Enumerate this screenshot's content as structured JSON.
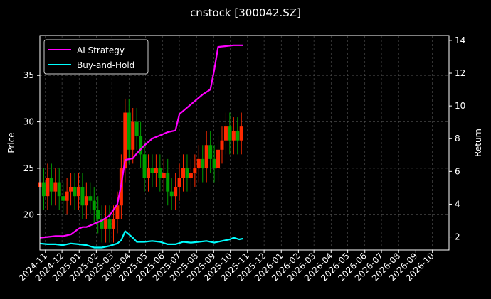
{
  "chart_data": {
    "type": "line",
    "title": "cnstock [300042.SZ]",
    "xlabel": "",
    "ylabel_left": "Price",
    "ylabel_right": "Return",
    "background": "#000000",
    "grid": true,
    "legend_position": "top-left",
    "x_ticks": [
      "2024-11",
      "2024-12",
      "2025-01",
      "2025-02",
      "2025-03",
      "2025-04",
      "2025-05",
      "2025-06",
      "2025-07",
      "2025-08",
      "2025-09",
      "2025-10",
      "2025-11",
      "2025-12",
      "2026-01",
      "2026-02",
      "2026-03",
      "2026-04",
      "2026-05",
      "2026-06",
      "2026-07",
      "2026-08",
      "2026-09",
      "2026-10"
    ],
    "x_range": [
      "2024-10-22",
      "2026-10-31"
    ],
    "y_left_ticks": [
      20,
      25,
      30,
      35
    ],
    "y_left_range": [
      16.2,
      39.3
    ],
    "y_right_ticks": [
      2,
      4,
      6,
      8,
      10,
      12,
      14
    ],
    "y_right_range": [
      1.2,
      14.3
    ],
    "candle_colors": {
      "up": "#ff2a00",
      "down": "#00a000"
    },
    "price_close": [
      [
        "2024-10-22",
        23.5
      ],
      [
        "2024-10-29",
        22.0
      ],
      [
        "2024-11-05",
        24.0
      ],
      [
        "2024-11-12",
        22.5
      ],
      [
        "2024-11-19",
        23.5
      ],
      [
        "2024-11-26",
        22.0
      ],
      [
        "2024-12-03",
        21.5
      ],
      [
        "2024-12-10",
        22.5
      ],
      [
        "2024-12-17",
        23.0
      ],
      [
        "2024-12-24",
        22.0
      ],
      [
        "2024-12-31",
        23.0
      ],
      [
        "2025-01-07",
        21.0
      ],
      [
        "2025-01-14",
        22.0
      ],
      [
        "2025-01-21",
        21.5
      ],
      [
        "2025-01-28",
        20.5
      ],
      [
        "2025-02-04",
        19.5
      ],
      [
        "2025-02-11",
        18.5
      ],
      [
        "2025-02-18",
        19.5
      ],
      [
        "2025-02-25",
        18.5
      ],
      [
        "2025-03-04",
        19.5
      ],
      [
        "2025-03-11",
        21.0
      ],
      [
        "2025-03-18",
        25.0
      ],
      [
        "2025-03-25",
        31.0
      ],
      [
        "2025-04-01",
        27.0
      ],
      [
        "2025-04-08",
        30.0
      ],
      [
        "2025-04-15",
        28.5
      ],
      [
        "2025-04-22",
        26.5
      ],
      [
        "2025-04-29",
        24.0
      ],
      [
        "2025-05-06",
        25.0
      ],
      [
        "2025-05-13",
        24.5
      ],
      [
        "2025-05-20",
        25.0
      ],
      [
        "2025-05-27",
        24.0
      ],
      [
        "2025-06-03",
        24.5
      ],
      [
        "2025-06-10",
        22.5
      ],
      [
        "2025-06-17",
        22.0
      ],
      [
        "2025-06-24",
        23.0
      ],
      [
        "2025-07-01",
        24.0
      ],
      [
        "2025-07-08",
        25.0
      ],
      [
        "2025-07-15",
        24.0
      ],
      [
        "2025-07-22",
        24.5
      ],
      [
        "2025-07-29",
        25.0
      ],
      [
        "2025-08-05",
        26.0
      ],
      [
        "2025-08-12",
        25.0
      ],
      [
        "2025-08-19",
        27.5
      ],
      [
        "2025-08-26",
        26.0
      ],
      [
        "2025-09-02",
        25.0
      ],
      [
        "2025-09-09",
        27.0
      ],
      [
        "2025-09-16",
        28.0
      ],
      [
        "2025-09-23",
        29.5
      ],
      [
        "2025-09-30",
        28.0
      ],
      [
        "2025-10-07",
        29.0
      ],
      [
        "2025-10-14",
        28.0
      ],
      [
        "2025-10-21",
        29.5
      ]
    ],
    "series": [
      {
        "name": "AI Strategy",
        "axis": "right",
        "color": "#ff00ff",
        "points": [
          [
            "2024-10-22",
            1.95
          ],
          [
            "2024-11-05",
            2.0
          ],
          [
            "2024-11-19",
            2.05
          ],
          [
            "2024-12-03",
            2.05
          ],
          [
            "2024-12-17",
            2.15
          ],
          [
            "2024-12-31",
            2.5
          ],
          [
            "2025-01-07",
            2.6
          ],
          [
            "2025-01-14",
            2.6
          ],
          [
            "2025-01-28",
            2.8
          ],
          [
            "2025-02-11",
            3.0
          ],
          [
            "2025-02-25",
            3.3
          ],
          [
            "2025-03-11",
            4.0
          ],
          [
            "2025-03-18",
            5.2
          ],
          [
            "2025-03-25",
            6.7
          ],
          [
            "2025-04-08",
            6.8
          ],
          [
            "2025-04-15",
            7.1
          ],
          [
            "2025-04-29",
            7.6
          ],
          [
            "2025-05-13",
            8.0
          ],
          [
            "2025-05-27",
            8.2
          ],
          [
            "2025-06-10",
            8.4
          ],
          [
            "2025-06-24",
            8.5
          ],
          [
            "2025-07-01",
            9.5
          ],
          [
            "2025-07-15",
            9.9
          ],
          [
            "2025-07-29",
            10.3
          ],
          [
            "2025-08-12",
            10.7
          ],
          [
            "2025-08-26",
            11.0
          ],
          [
            "2025-09-02",
            12.2
          ],
          [
            "2025-09-09",
            13.6
          ],
          [
            "2025-09-23",
            13.65
          ],
          [
            "2025-10-07",
            13.7
          ],
          [
            "2025-10-24",
            13.7
          ]
        ]
      },
      {
        "name": "Buy-and-Hold",
        "axis": "right",
        "color": "#00ffff",
        "points": [
          [
            "2024-10-22",
            1.6
          ],
          [
            "2024-11-05",
            1.55
          ],
          [
            "2024-11-19",
            1.55
          ],
          [
            "2024-12-03",
            1.5
          ],
          [
            "2024-12-17",
            1.6
          ],
          [
            "2024-12-31",
            1.55
          ],
          [
            "2025-01-14",
            1.5
          ],
          [
            "2025-01-28",
            1.35
          ],
          [
            "2025-02-11",
            1.35
          ],
          [
            "2025-02-25",
            1.45
          ],
          [
            "2025-03-11",
            1.6
          ],
          [
            "2025-03-18",
            1.8
          ],
          [
            "2025-03-25",
            2.35
          ],
          [
            "2025-04-08",
            1.95
          ],
          [
            "2025-04-15",
            1.7
          ],
          [
            "2025-04-29",
            1.7
          ],
          [
            "2025-05-13",
            1.75
          ],
          [
            "2025-05-27",
            1.7
          ],
          [
            "2025-06-10",
            1.55
          ],
          [
            "2025-06-24",
            1.55
          ],
          [
            "2025-07-08",
            1.7
          ],
          [
            "2025-07-22",
            1.65
          ],
          [
            "2025-08-05",
            1.7
          ],
          [
            "2025-08-19",
            1.75
          ],
          [
            "2025-09-02",
            1.65
          ],
          [
            "2025-09-16",
            1.75
          ],
          [
            "2025-09-30",
            1.85
          ],
          [
            "2025-10-07",
            1.95
          ],
          [
            "2025-10-17",
            1.85
          ],
          [
            "2025-10-24",
            1.9
          ]
        ]
      }
    ]
  }
}
